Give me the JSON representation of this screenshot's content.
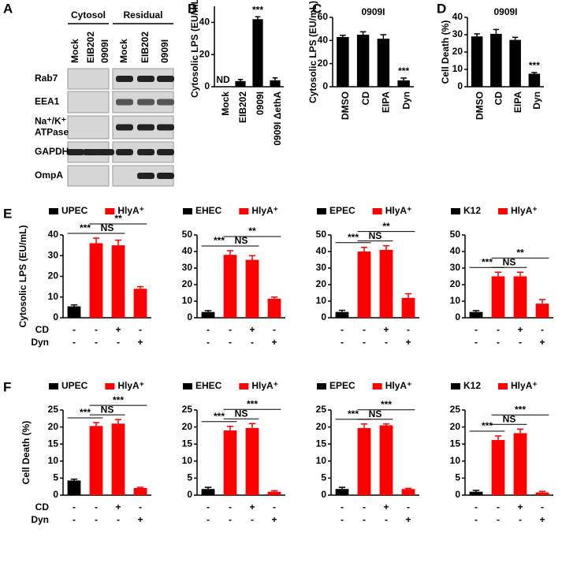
{
  "panel_letters": [
    "A",
    "B",
    "C",
    "D",
    "E",
    "F"
  ],
  "blot": {
    "groups": [
      "Cytosol",
      "Residual"
    ],
    "lanes": [
      "Mock",
      "EIB202",
      "0909I",
      "Mock",
      "EIB202",
      "0909I"
    ],
    "rows": [
      [
        "Rab7"
      ],
      [
        "EEA1"
      ],
      [
        "Na⁺/K⁺",
        "ATPase"
      ],
      [
        "GAPDH"
      ],
      [
        "OmpA"
      ]
    ]
  },
  "chart_data": [
    {
      "type": "bar",
      "y_label": "Cytosolic LPS (EU/mL)",
      "categories": [
        "Mock",
        "EIB202",
        "0909I",
        "0909I ΔethA"
      ],
      "values": [
        null,
        3.5,
        42,
        4
      ],
      "errors": [
        null,
        1,
        1.5,
        1.5
      ],
      "sig": [
        "ND",
        null,
        "***",
        null
      ],
      "color": "#000000",
      "ylim": [
        0,
        50
      ],
      "yticks": [
        0,
        20,
        40
      ]
    },
    {
      "type": "bar",
      "title": "0909I",
      "y_label": "Cytosolic LPS (EU/mL)",
      "categories": [
        "DMSO",
        "CD",
        "EIPA",
        "Dyn"
      ],
      "values": [
        43,
        45,
        41.5,
        5.5
      ],
      "errors": [
        1.5,
        2.5,
        3.5,
        2
      ],
      "sig": [
        null,
        null,
        null,
        "***"
      ],
      "color": "#000000",
      "ylim": [
        0,
        60
      ],
      "yticks": [
        0,
        20,
        40,
        60
      ]
    },
    {
      "type": "bar",
      "title": "0909I",
      "y_label": "Cell Death (%)",
      "categories": [
        "DMSO",
        "CD",
        "EIPA",
        "Dyn"
      ],
      "values": [
        29,
        30.5,
        27,
        7.5
      ],
      "errors": [
        1.5,
        2.5,
        1.5,
        0.7
      ],
      "sig": [
        null,
        null,
        null,
        "***"
      ],
      "color": "#000000",
      "ylim": [
        0,
        40
      ],
      "yticks": [
        0,
        10,
        20,
        30,
        40
      ]
    },
    {
      "type": "bar",
      "y_label": "Cytosolic LPS (EU/mL)",
      "legend": [
        {
          "name": "UPEC",
          "color": "#000000"
        },
        {
          "name": "HlyA⁺",
          "color": "#ff0000"
        }
      ],
      "values": [
        5.5,
        36,
        35,
        14
      ],
      "errors": [
        0.7,
        2.5,
        2.5,
        1
      ],
      "colors": [
        "#000000",
        "#ff0000",
        "#ff0000",
        "#ff0000"
      ],
      "ylim": [
        0,
        40
      ],
      "yticks": [
        0,
        10,
        20,
        30,
        40
      ],
      "treatments": [
        {
          "name": "CD",
          "marks": [
            "-",
            "-",
            "+",
            "-"
          ]
        },
        {
          "name": "Dyn",
          "marks": [
            "-",
            "-",
            "-",
            "+"
          ]
        }
      ],
      "brackets": [
        {
          "span": [
            0,
            1
          ],
          "label": "***"
        },
        {
          "span": [
            1,
            2
          ],
          "label": "NS"
        },
        {
          "span": [
            1,
            3
          ],
          "label": "**"
        }
      ]
    },
    {
      "type": "bar",
      "legend": [
        {
          "name": "EHEC",
          "color": "#000000"
        },
        {
          "name": "HlyA⁺",
          "color": "#ff0000"
        }
      ],
      "values": [
        3.5,
        38,
        35,
        11.5
      ],
      "errors": [
        0.8,
        2.5,
        2.5,
        1
      ],
      "colors": [
        "#000000",
        "#ff0000",
        "#ff0000",
        "#ff0000"
      ],
      "ylim": [
        0,
        50
      ],
      "yticks": [
        0,
        10,
        20,
        30,
        40,
        50
      ],
      "treatments": [
        {
          "marks": [
            "-",
            "-",
            "+",
            "-"
          ]
        },
        {
          "marks": [
            "-",
            "-",
            "-",
            "+"
          ]
        }
      ],
      "brackets": [
        {
          "span": [
            0,
            1
          ],
          "label": "***"
        },
        {
          "span": [
            1,
            2
          ],
          "label": "NS"
        },
        {
          "span": [
            1,
            3
          ],
          "label": "**"
        }
      ]
    },
    {
      "type": "bar",
      "legend": [
        {
          "name": "EPEC",
          "color": "#000000"
        },
        {
          "name": "HlyA⁺",
          "color": "#ff0000"
        }
      ],
      "values": [
        3.5,
        40,
        41,
        12
      ],
      "errors": [
        1,
        2.5,
        2.5,
        2.5
      ],
      "colors": [
        "#000000",
        "#ff0000",
        "#ff0000",
        "#ff0000"
      ],
      "ylim": [
        0,
        50
      ],
      "yticks": [
        0,
        10,
        20,
        30,
        40,
        50
      ],
      "treatments": [
        {
          "marks": [
            "-",
            "-",
            "+",
            "-"
          ]
        },
        {
          "marks": [
            "-",
            "-",
            "-",
            "+"
          ]
        }
      ],
      "brackets": [
        {
          "span": [
            0,
            1
          ],
          "label": "***"
        },
        {
          "span": [
            1,
            2
          ],
          "label": "NS"
        },
        {
          "span": [
            1,
            3
          ],
          "label": "**"
        }
      ]
    },
    {
      "type": "bar",
      "legend": [
        {
          "name": "K12",
          "color": "#000000"
        },
        {
          "name": "HlyA⁺",
          "color": "#ff0000"
        }
      ],
      "values": [
        3.5,
        25,
        25,
        8.5
      ],
      "errors": [
        0.8,
        2.5,
        2.5,
        2.5
      ],
      "colors": [
        "#000000",
        "#ff0000",
        "#ff0000",
        "#ff0000"
      ],
      "ylim": [
        0,
        50
      ],
      "yticks": [
        0,
        10,
        20,
        30,
        40,
        50
      ],
      "treatments": [
        {
          "marks": [
            "-",
            "-",
            "+",
            "-"
          ]
        },
        {
          "marks": [
            "-",
            "-",
            "-",
            "+"
          ]
        }
      ],
      "brackets": [
        {
          "span": [
            0,
            1
          ],
          "label": "***"
        },
        {
          "span": [
            1,
            2
          ],
          "label": "NS"
        },
        {
          "span": [
            1,
            3
          ],
          "label": "**"
        }
      ]
    },
    {
      "type": "bar",
      "y_label": "Cell Death (%)",
      "legend": [
        {
          "name": "UPEC",
          "color": "#000000"
        },
        {
          "name": "HlyA⁺",
          "color": "#ff0000"
        }
      ],
      "values": [
        4.3,
        20.3,
        21,
        2.1
      ],
      "errors": [
        0.4,
        1,
        1.2,
        0.2
      ],
      "colors": [
        "#000000",
        "#ff0000",
        "#ff0000",
        "#ff0000"
      ],
      "ylim": [
        0,
        25
      ],
      "yticks": [
        0,
        5,
        10,
        15,
        20,
        25
      ],
      "treatments": [
        {
          "name": "CD",
          "marks": [
            "-",
            "-",
            "+",
            "-"
          ]
        },
        {
          "name": "Dyn",
          "marks": [
            "-",
            "-",
            "-",
            "+"
          ]
        }
      ],
      "brackets": [
        {
          "span": [
            0,
            1
          ],
          "label": "***"
        },
        {
          "span": [
            1,
            2
          ],
          "label": "NS"
        },
        {
          "span": [
            1,
            3
          ],
          "label": "***"
        }
      ]
    },
    {
      "type": "bar",
      "legend": [
        {
          "name": "EHEC",
          "color": "#000000"
        },
        {
          "name": "HlyA⁺",
          "color": "#ff0000"
        }
      ],
      "values": [
        1.8,
        19,
        19.7,
        1
      ],
      "errors": [
        0.5,
        1.2,
        1.3,
        0.3
      ],
      "colors": [
        "#000000",
        "#ff0000",
        "#ff0000",
        "#ff0000"
      ],
      "ylim": [
        0,
        25
      ],
      "yticks": [
        0,
        5,
        10,
        15,
        20,
        25
      ],
      "treatments": [
        {
          "marks": [
            "-",
            "-",
            "+",
            "-"
          ]
        },
        {
          "marks": [
            "-",
            "-",
            "-",
            "+"
          ]
        }
      ],
      "brackets": [
        {
          "span": [
            0,
            1
          ],
          "label": "***"
        },
        {
          "span": [
            1,
            2
          ],
          "label": "NS"
        },
        {
          "span": [
            1,
            3
          ],
          "label": "***"
        }
      ]
    },
    {
      "type": "bar",
      "legend": [
        {
          "name": "EPEC",
          "color": "#000000"
        },
        {
          "name": "HlyA⁺",
          "color": "#ff0000"
        }
      ],
      "values": [
        1.8,
        19.7,
        20.5,
        1.8
      ],
      "errors": [
        0.5,
        1.2,
        0.4,
        0.2
      ],
      "colors": [
        "#000000",
        "#ff0000",
        "#ff0000",
        "#ff0000"
      ],
      "ylim": [
        0,
        25
      ],
      "yticks": [
        0,
        5,
        10,
        15,
        20,
        25
      ],
      "treatments": [
        {
          "marks": [
            "-",
            "-",
            "+",
            "-"
          ]
        },
        {
          "marks": [
            "-",
            "-",
            "-",
            "+"
          ]
        }
      ],
      "brackets": [
        {
          "span": [
            0,
            1
          ],
          "label": "***"
        },
        {
          "span": [
            1,
            2
          ],
          "label": "NS"
        },
        {
          "span": [
            1,
            3
          ],
          "label": "***"
        }
      ]
    },
    {
      "type": "bar",
      "legend": [
        {
          "name": "K12",
          "color": "#000000"
        },
        {
          "name": "HlyA⁺",
          "color": "#ff0000"
        }
      ],
      "values": [
        1,
        16.2,
        18.2,
        0.8
      ],
      "errors": [
        0.4,
        1.2,
        1.2,
        0.3
      ],
      "colors": [
        "#000000",
        "#ff0000",
        "#ff0000",
        "#ff0000"
      ],
      "ylim": [
        0,
        25
      ],
      "yticks": [
        0,
        5,
        10,
        15,
        20,
        25
      ],
      "treatments": [
        {
          "marks": [
            "-",
            "-",
            "+",
            "-"
          ]
        },
        {
          "marks": [
            "-",
            "-",
            "-",
            "+"
          ]
        }
      ],
      "brackets": [
        {
          "span": [
            0,
            1
          ],
          "label": "***"
        },
        {
          "span": [
            1,
            2
          ],
          "label": "NS"
        },
        {
          "span": [
            1,
            3
          ],
          "label": "***"
        }
      ]
    }
  ]
}
